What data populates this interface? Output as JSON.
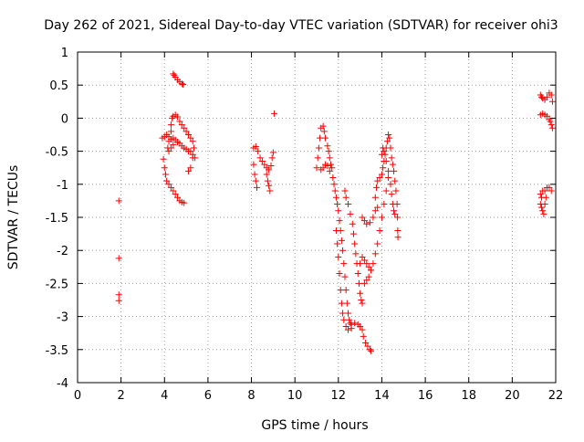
{
  "chart_data": {
    "type": "scatter",
    "title": "Day 262 of 2021, Sidereal Day-to-day VTEC variation (SDTVAR) for receiver ohi3",
    "xlabel": "GPS time / hours",
    "ylabel": "SDTVAR / TECUs",
    "xlim": [
      0,
      22
    ],
    "ylim": [
      -4,
      1
    ],
    "x_ticks": [
      0,
      2,
      4,
      6,
      8,
      10,
      12,
      14,
      16,
      18,
      20,
      22
    ],
    "x_tick_labels": [
      "0",
      "2",
      "4",
      "6",
      "8",
      "10",
      "12",
      "14",
      "16",
      "18",
      "20",
      "22"
    ],
    "y_ticks": [
      1,
      0.5,
      0,
      -0.5,
      -1,
      -1.5,
      -2,
      -2.5,
      -3,
      -3.5,
      -4
    ],
    "y_tick_labels": [
      "1",
      "0.5",
      "0",
      "-0.5",
      "-1",
      "-1.5",
      "-2",
      "-2.5",
      "-3",
      "-3.5",
      "-4"
    ],
    "grid": true,
    "marker": "plus",
    "marker_color": "#ff0000",
    "series": [
      {
        "name": "sdtvar",
        "points": [
          [
            1.9,
            -1.25
          ],
          [
            1.9,
            -2.12
          ],
          [
            1.9,
            -2.67
          ],
          [
            1.9,
            -2.76
          ],
          [
            3.9,
            -0.3
          ],
          [
            4.0,
            -0.28
          ],
          [
            4.1,
            -0.25
          ],
          [
            4.2,
            -0.28
          ],
          [
            4.3,
            -0.32
          ],
          [
            4.4,
            -0.3
          ],
          [
            4.5,
            -0.33
          ],
          [
            4.6,
            -0.36
          ],
          [
            4.7,
            -0.38
          ],
          [
            4.8,
            -0.42
          ],
          [
            4.9,
            -0.45
          ],
          [
            5.0,
            -0.47
          ],
          [
            5.1,
            -0.5
          ],
          [
            5.2,
            -0.5
          ],
          [
            5.3,
            -0.55
          ],
          [
            5.4,
            -0.6
          ],
          [
            3.95,
            -0.62
          ],
          [
            4.0,
            -0.75
          ],
          [
            4.05,
            -0.85
          ],
          [
            4.1,
            -0.95
          ],
          [
            4.2,
            -1.0
          ],
          [
            4.3,
            -1.05
          ],
          [
            4.4,
            -1.1
          ],
          [
            4.5,
            -1.15
          ],
          [
            4.6,
            -1.2
          ],
          [
            4.7,
            -1.25
          ],
          [
            4.8,
            -1.27
          ],
          [
            4.9,
            -1.28
          ],
          [
            4.3,
            -0.1
          ],
          [
            4.35,
            0.0
          ],
          [
            4.4,
            0.03
          ],
          [
            4.5,
            0.05
          ],
          [
            4.6,
            0.02
          ],
          [
            4.7,
            -0.05
          ],
          [
            4.8,
            -0.1
          ],
          [
            4.9,
            -0.15
          ],
          [
            5.0,
            -0.2
          ],
          [
            5.1,
            -0.25
          ],
          [
            5.2,
            -0.3
          ],
          [
            5.3,
            -0.35
          ],
          [
            5.35,
            -0.45
          ],
          [
            5.3,
            -0.6
          ],
          [
            5.2,
            -0.75
          ],
          [
            5.1,
            -0.8
          ],
          [
            4.4,
            0.67
          ],
          [
            4.45,
            0.65
          ],
          [
            4.5,
            0.62
          ],
          [
            4.6,
            0.58
          ],
          [
            4.7,
            0.55
          ],
          [
            4.8,
            0.52
          ],
          [
            4.85,
            0.51
          ],
          [
            4.3,
            -0.2
          ],
          [
            4.2,
            -0.35
          ],
          [
            4.15,
            -0.45
          ],
          [
            4.2,
            -0.5
          ],
          [
            4.3,
            -0.45
          ],
          [
            4.4,
            -0.4
          ],
          [
            8.1,
            -0.45
          ],
          [
            8.2,
            -0.43
          ],
          [
            8.3,
            -0.5
          ],
          [
            8.4,
            -0.6
          ],
          [
            8.5,
            -0.65
          ],
          [
            8.6,
            -0.7
          ],
          [
            8.7,
            -0.75
          ],
          [
            8.8,
            -0.78
          ],
          [
            8.9,
            -0.72
          ],
          [
            8.95,
            -0.6
          ],
          [
            9.0,
            -0.52
          ],
          [
            8.1,
            -0.7
          ],
          [
            8.15,
            -0.85
          ],
          [
            8.2,
            -0.95
          ],
          [
            8.25,
            -1.05
          ],
          [
            8.7,
            -0.85
          ],
          [
            8.75,
            -0.95
          ],
          [
            8.8,
            -1.02
          ],
          [
            8.85,
            -1.1
          ],
          [
            9.05,
            0.07
          ],
          [
            11.0,
            -0.75
          ],
          [
            11.05,
            -0.6
          ],
          [
            11.1,
            -0.45
          ],
          [
            11.15,
            -0.3
          ],
          [
            11.2,
            -0.15
          ],
          [
            11.3,
            -0.12
          ],
          [
            11.35,
            -0.2
          ],
          [
            11.4,
            -0.3
          ],
          [
            11.5,
            -0.42
          ],
          [
            11.55,
            -0.5
          ],
          [
            11.6,
            -0.6
          ],
          [
            11.65,
            -0.7
          ],
          [
            11.7,
            -0.75
          ],
          [
            11.2,
            -0.78
          ],
          [
            11.3,
            -0.75
          ],
          [
            11.4,
            -0.7
          ],
          [
            11.5,
            -0.72
          ],
          [
            11.6,
            -0.8
          ],
          [
            11.75,
            -0.9
          ],
          [
            11.8,
            -1.0
          ],
          [
            11.85,
            -1.1
          ],
          [
            11.9,
            -1.2
          ],
          [
            11.95,
            -1.3
          ],
          [
            12.0,
            -1.4
          ],
          [
            12.05,
            -1.55
          ],
          [
            12.1,
            -1.7
          ],
          [
            12.15,
            -1.85
          ],
          [
            12.2,
            -2.0
          ],
          [
            12.25,
            -2.2
          ],
          [
            12.3,
            -2.4
          ],
          [
            12.35,
            -2.6
          ],
          [
            12.4,
            -2.8
          ],
          [
            12.45,
            -2.95
          ],
          [
            12.5,
            -3.05
          ],
          [
            12.55,
            -3.1
          ],
          [
            12.6,
            -3.12
          ],
          [
            11.9,
            -1.7
          ],
          [
            11.95,
            -1.9
          ],
          [
            12.0,
            -2.1
          ],
          [
            12.05,
            -2.35
          ],
          [
            12.1,
            -2.6
          ],
          [
            12.15,
            -2.8
          ],
          [
            12.2,
            -2.95
          ],
          [
            12.25,
            -3.05
          ],
          [
            12.35,
            -3.15
          ],
          [
            12.45,
            -3.2
          ],
          [
            12.6,
            -3.18
          ],
          [
            12.75,
            -3.1
          ],
          [
            12.9,
            -3.12
          ],
          [
            13.0,
            -3.15
          ],
          [
            13.1,
            -3.2
          ],
          [
            13.15,
            -3.3
          ],
          [
            13.25,
            -3.4
          ],
          [
            13.35,
            -3.45
          ],
          [
            13.45,
            -3.5
          ],
          [
            13.5,
            -3.52
          ],
          [
            12.3,
            -1.1
          ],
          [
            12.35,
            -1.2
          ],
          [
            12.45,
            -1.3
          ],
          [
            12.55,
            -1.45
          ],
          [
            12.65,
            -1.6
          ],
          [
            12.7,
            -1.75
          ],
          [
            12.75,
            -1.9
          ],
          [
            12.8,
            -2.05
          ],
          [
            12.85,
            -2.2
          ],
          [
            12.9,
            -2.35
          ],
          [
            12.95,
            -2.5
          ],
          [
            13.0,
            -2.65
          ],
          [
            13.05,
            -2.75
          ],
          [
            13.1,
            -2.8
          ],
          [
            13.1,
            -1.5
          ],
          [
            13.2,
            -1.55
          ],
          [
            13.3,
            -1.6
          ],
          [
            13.45,
            -1.58
          ],
          [
            13.6,
            -1.5
          ],
          [
            13.7,
            -1.4
          ],
          [
            13.8,
            -1.35
          ],
          [
            13.0,
            -2.2
          ],
          [
            13.1,
            -2.1
          ],
          [
            13.2,
            -2.15
          ],
          [
            13.3,
            -2.2
          ],
          [
            13.4,
            -2.25
          ],
          [
            13.5,
            -2.3
          ],
          [
            13.6,
            -2.2
          ],
          [
            13.7,
            -2.05
          ],
          [
            13.8,
            -1.9
          ],
          [
            13.9,
            -1.7
          ],
          [
            14.0,
            -1.5
          ],
          [
            14.1,
            -1.3
          ],
          [
            14.2,
            -1.1
          ],
          [
            14.3,
            -0.9
          ],
          [
            13.2,
            -2.5
          ],
          [
            13.3,
            -2.45
          ],
          [
            13.4,
            -2.4
          ],
          [
            13.5,
            -2.3
          ],
          [
            13.7,
            -1.2
          ],
          [
            13.75,
            -1.05
          ],
          [
            13.8,
            -0.95
          ],
          [
            13.9,
            -0.9
          ],
          [
            14.0,
            -0.85
          ],
          [
            14.05,
            -0.75
          ],
          [
            14.1,
            -0.65
          ],
          [
            14.15,
            -0.55
          ],
          [
            14.2,
            -0.45
          ],
          [
            14.25,
            -0.35
          ],
          [
            14.3,
            -0.25
          ],
          [
            14.35,
            -0.3
          ],
          [
            14.4,
            -0.45
          ],
          [
            14.45,
            -0.6
          ],
          [
            14.5,
            -0.7
          ],
          [
            14.55,
            -0.8
          ],
          [
            14.6,
            -0.95
          ],
          [
            14.65,
            -1.1
          ],
          [
            14.7,
            -1.3
          ],
          [
            14.72,
            -1.5
          ],
          [
            14.73,
            -1.7
          ],
          [
            14.74,
            -1.8
          ],
          [
            14.0,
            -0.55
          ],
          [
            14.05,
            -0.45
          ],
          [
            14.1,
            -0.5
          ],
          [
            14.2,
            -0.65
          ],
          [
            14.3,
            -0.8
          ],
          [
            14.4,
            -1.0
          ],
          [
            14.45,
            -1.15
          ],
          [
            14.5,
            -1.3
          ],
          [
            14.55,
            -1.4
          ],
          [
            14.6,
            -1.45
          ],
          [
            21.3,
            0.35
          ],
          [
            21.35,
            0.32
          ],
          [
            21.4,
            0.3
          ],
          [
            21.5,
            0.28
          ],
          [
            21.6,
            0.32
          ],
          [
            21.7,
            0.38
          ],
          [
            21.8,
            0.35
          ],
          [
            21.85,
            0.25
          ],
          [
            21.3,
            0.05
          ],
          [
            21.4,
            0.07
          ],
          [
            21.5,
            0.05
          ],
          [
            21.6,
            0.03
          ],
          [
            21.7,
            -0.02
          ],
          [
            21.75,
            -0.05
          ],
          [
            21.8,
            -0.1
          ],
          [
            21.85,
            -0.15
          ],
          [
            21.3,
            -1.15
          ],
          [
            21.35,
            -1.2
          ],
          [
            21.4,
            -1.1
          ],
          [
            21.5,
            -1.1
          ],
          [
            21.6,
            -1.05
          ],
          [
            21.7,
            -1.05
          ],
          [
            21.8,
            -1.1
          ],
          [
            21.3,
            -1.3
          ],
          [
            21.35,
            -1.35
          ],
          [
            21.4,
            -1.4
          ],
          [
            21.45,
            -1.45
          ],
          [
            21.5,
            -1.3
          ],
          [
            21.55,
            -1.2
          ]
        ]
      }
    ]
  }
}
